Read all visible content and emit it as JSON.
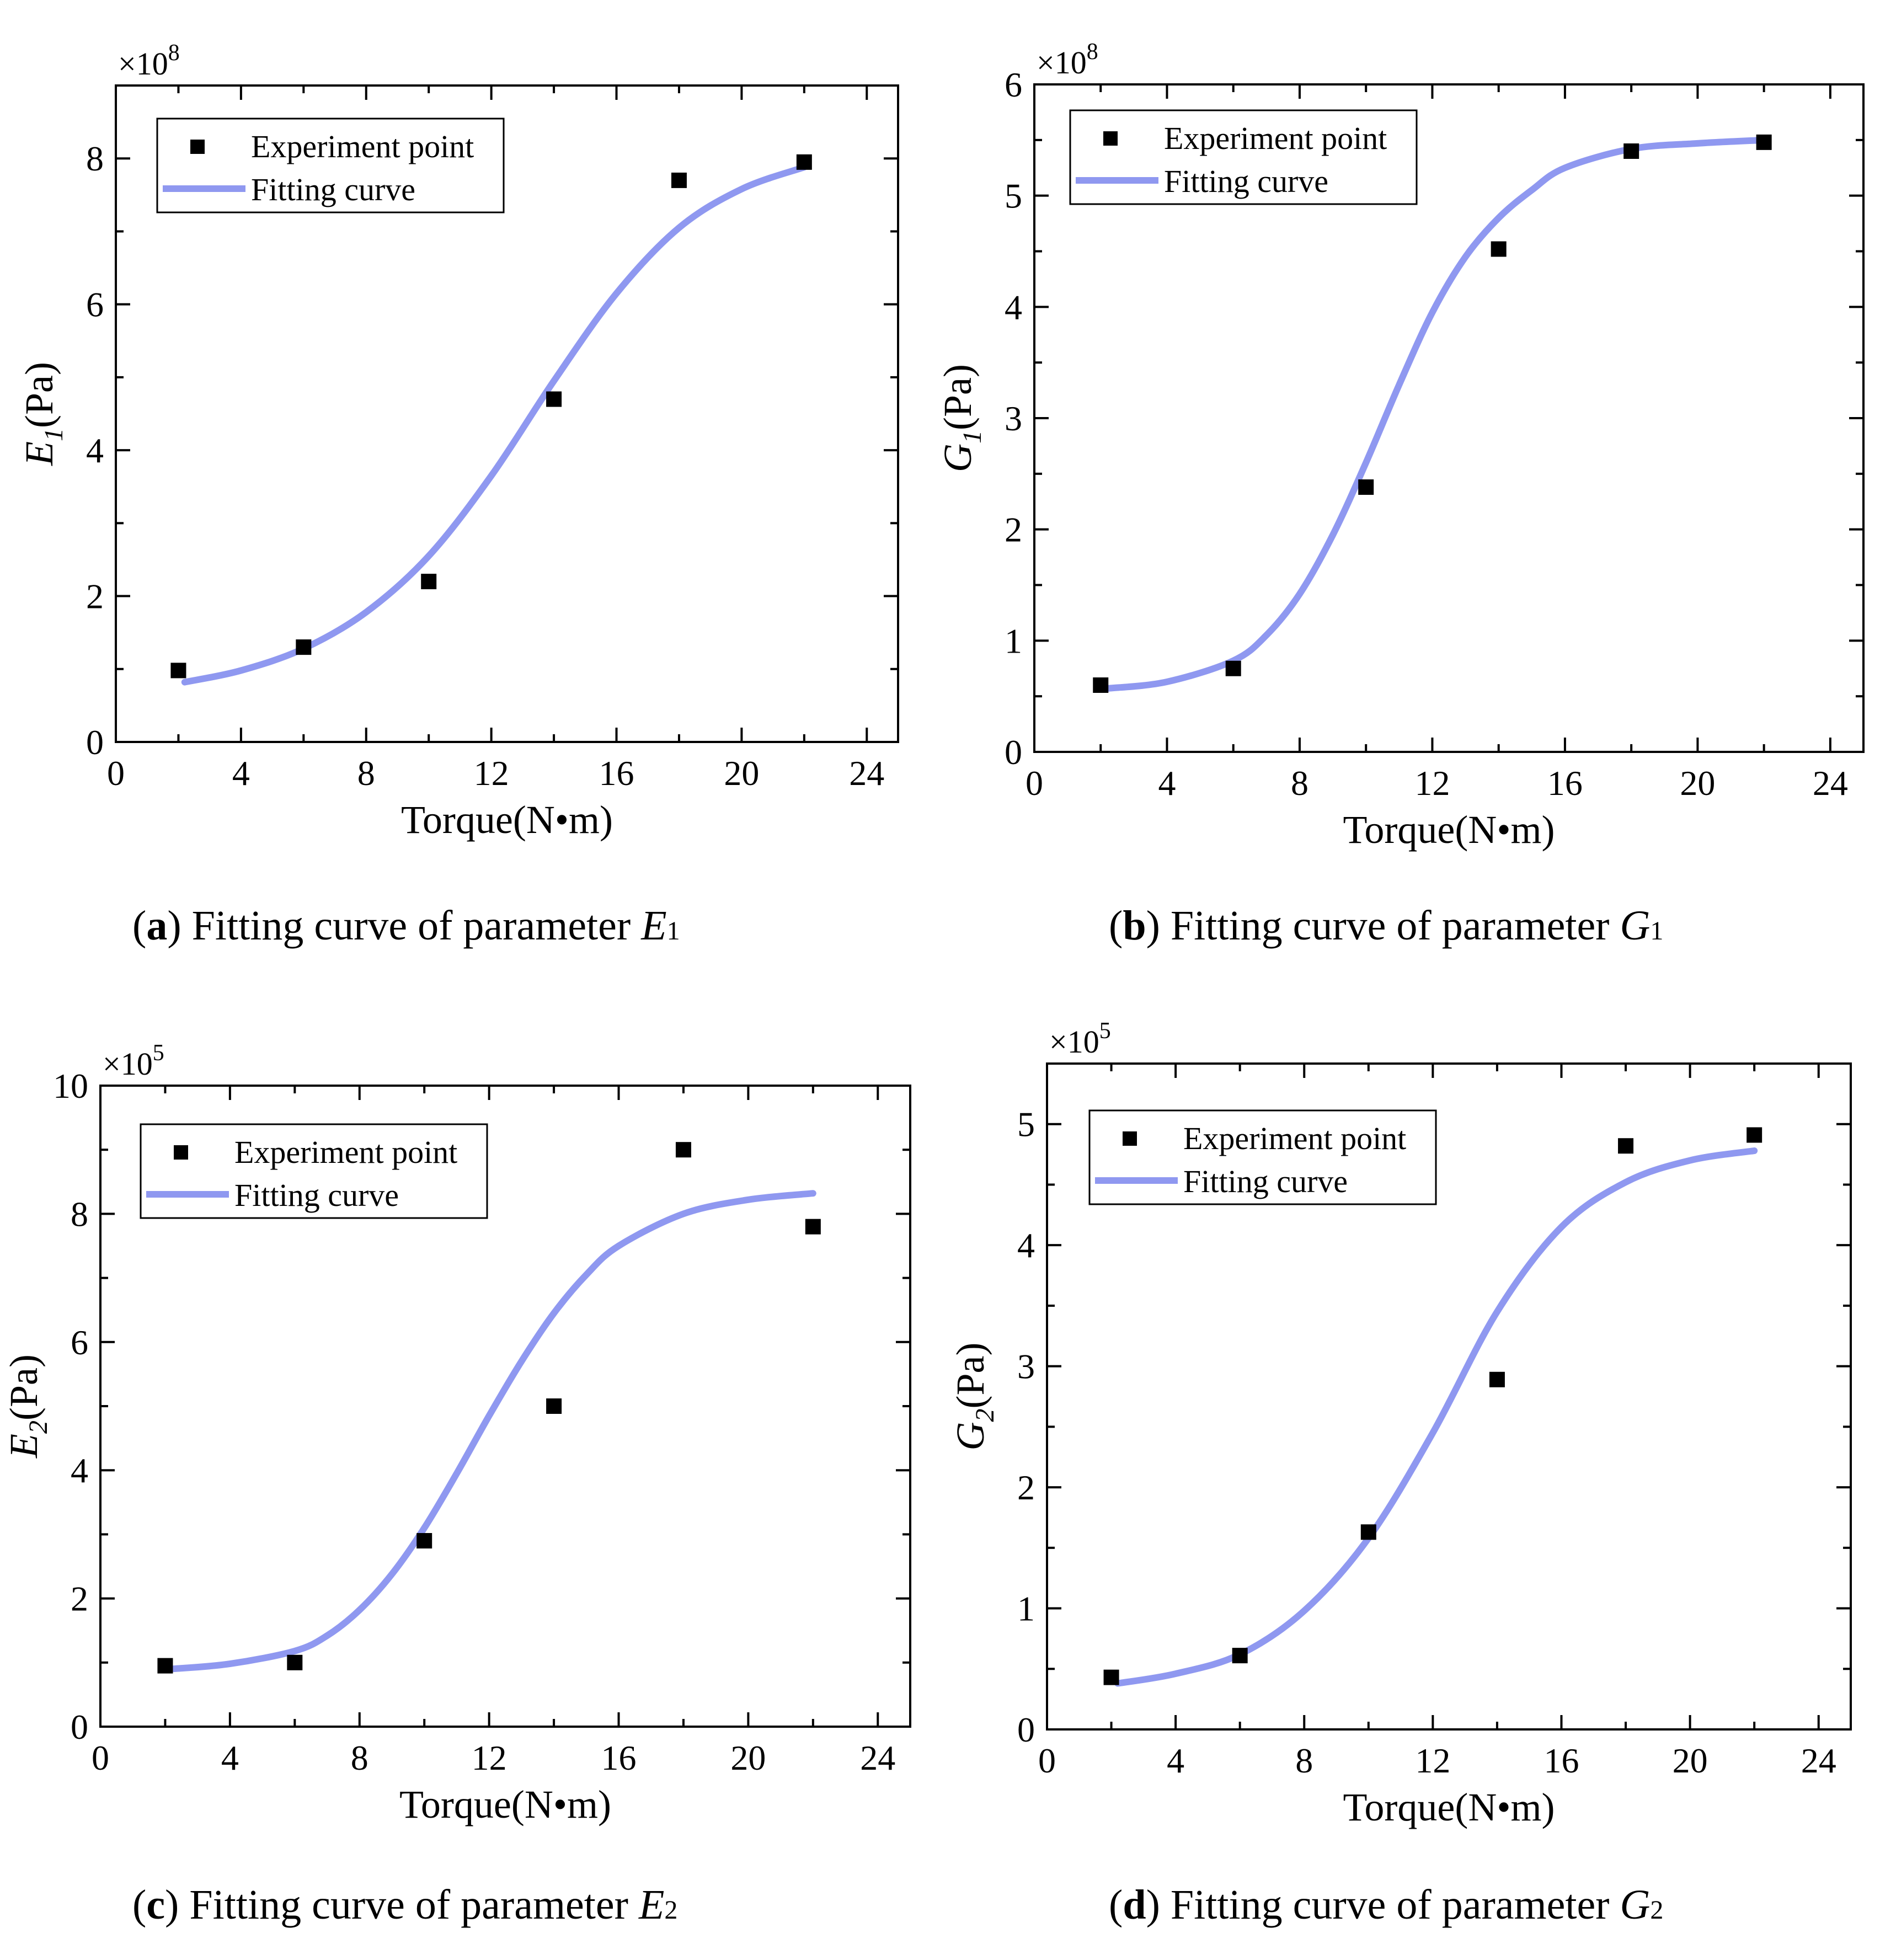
{
  "chart_data": [
    {
      "id": "a",
      "type": "scatter",
      "caption": {
        "letter": "a",
        "text": "Fitting curve of parameter",
        "symbol": "E",
        "index": "1"
      },
      "xlabel": "Torque(N•m)",
      "ylabel": {
        "symbol": "E",
        "index": "1",
        "unit": "(Pa)"
      },
      "multiplier": {
        "prefix": "×10",
        "exp": "8"
      },
      "xlim": [
        0,
        25
      ],
      "ylim": [
        0,
        9
      ],
      "xticks": [
        0,
        4,
        8,
        12,
        16,
        20,
        24
      ],
      "yticks": [
        0,
        2,
        4,
        6,
        8
      ],
      "series": [
        {
          "name": "Experiment point",
          "kind": "scatter",
          "x": [
            2,
            6,
            10,
            14,
            18,
            22
          ],
          "y": [
            0.98,
            1.3,
            2.2,
            4.7,
            7.7,
            7.95
          ]
        },
        {
          "name": "Fitting curve",
          "kind": "line",
          "x": [
            2.2,
            4,
            6,
            8,
            10,
            12,
            14,
            16,
            18,
            20,
            22
          ],
          "y": [
            0.82,
            0.98,
            1.28,
            1.78,
            2.55,
            3.65,
            4.95,
            6.15,
            7.05,
            7.58,
            7.88
          ]
        }
      ]
    },
    {
      "id": "b",
      "type": "scatter",
      "caption": {
        "letter": "b",
        "text": "Fitting curve of parameter",
        "symbol": "G",
        "index": "1"
      },
      "xlabel": "Torque(N•m)",
      "ylabel": {
        "symbol": "G",
        "index": "1",
        "unit": "(Pa)"
      },
      "multiplier": {
        "prefix": "×10",
        "exp": "8"
      },
      "xlim": [
        0,
        25
      ],
      "ylim": [
        0,
        6
      ],
      "xticks": [
        0,
        4,
        8,
        12,
        16,
        20,
        24
      ],
      "yticks": [
        0,
        1,
        2,
        3,
        4,
        5,
        6
      ],
      "series": [
        {
          "name": "Experiment point",
          "kind": "scatter",
          "x": [
            2,
            6,
            10,
            14,
            18,
            22
          ],
          "y": [
            0.6,
            0.75,
            2.38,
            4.52,
            5.4,
            5.48
          ]
        },
        {
          "name": "Fitting curve",
          "kind": "line",
          "x": [
            2.2,
            4,
            6,
            7,
            8,
            9,
            10,
            11,
            12,
            13,
            14,
            15,
            16,
            18,
            20,
            22
          ],
          "y": [
            0.57,
            0.63,
            0.82,
            1.05,
            1.42,
            1.95,
            2.6,
            3.3,
            3.95,
            4.45,
            4.8,
            5.05,
            5.25,
            5.42,
            5.47,
            5.5
          ]
        }
      ]
    },
    {
      "id": "c",
      "type": "scatter",
      "caption": {
        "letter": "c",
        "text": "Fitting curve of parameter",
        "symbol": "E",
        "index": "2"
      },
      "xlabel": "Torque(N•m)",
      "ylabel": {
        "symbol": "E",
        "index": "2",
        "unit": "(Pa)"
      },
      "multiplier": {
        "prefix": "×10",
        "exp": "5"
      },
      "xlim": [
        0,
        25
      ],
      "ylim": [
        0,
        10
      ],
      "xticks": [
        0,
        4,
        8,
        12,
        16,
        20,
        24
      ],
      "yticks": [
        0,
        2,
        4,
        6,
        8,
        10
      ],
      "series": [
        {
          "name": "Experiment point",
          "kind": "scatter",
          "x": [
            2,
            6,
            10,
            14,
            18,
            22
          ],
          "y": [
            0.95,
            1.0,
            2.9,
            5.0,
            9.0,
            7.8
          ]
        },
        {
          "name": "Fitting curve",
          "kind": "line",
          "x": [
            2.2,
            4,
            6,
            7,
            8,
            9,
            10,
            11,
            12,
            13,
            14,
            15,
            16,
            18,
            20,
            22
          ],
          "y": [
            0.9,
            0.98,
            1.18,
            1.42,
            1.82,
            2.38,
            3.1,
            3.95,
            4.85,
            5.7,
            6.45,
            7.05,
            7.5,
            8.0,
            8.22,
            8.32
          ]
        }
      ]
    },
    {
      "id": "d",
      "type": "scatter",
      "caption": {
        "letter": "d",
        "text": "Fitting curve of parameter",
        "symbol": "G",
        "index": "2"
      },
      "xlabel": "Torque(N•m)",
      "ylabel": {
        "symbol": "G",
        "index": "2",
        "unit": "(Pa)"
      },
      "multiplier": {
        "prefix": "×10",
        "exp": "5"
      },
      "xlim": [
        0,
        25
      ],
      "ylim": [
        0,
        5.5
      ],
      "xticks": [
        0,
        4,
        8,
        12,
        16,
        20,
        24
      ],
      "yticks": [
        0,
        1,
        2,
        3,
        4,
        5
      ],
      "series": [
        {
          "name": "Experiment point",
          "kind": "scatter",
          "x": [
            2,
            6,
            10,
            14,
            18,
            22
          ],
          "y": [
            0.43,
            0.61,
            1.63,
            2.89,
            4.82,
            4.91
          ]
        },
        {
          "name": "Fitting curve",
          "kind": "line",
          "x": [
            2.2,
            4,
            6,
            8,
            10,
            12,
            14,
            16,
            18,
            20,
            22
          ],
          "y": [
            0.38,
            0.46,
            0.62,
            0.98,
            1.58,
            2.45,
            3.45,
            4.15,
            4.52,
            4.7,
            4.78
          ]
        }
      ]
    }
  ],
  "colors": {
    "points": "#000000",
    "curve": "#8f98f0",
    "axis": "#000000"
  }
}
